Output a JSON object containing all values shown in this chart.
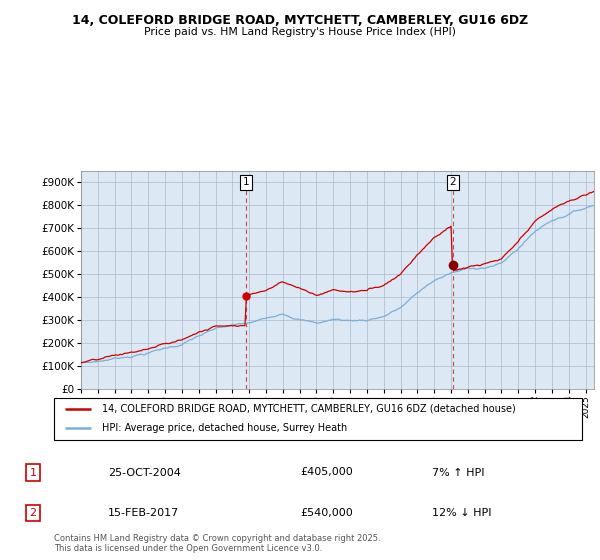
{
  "title1": "14, COLEFORD BRIDGE ROAD, MYTCHETT, CAMBERLEY, GU16 6DZ",
  "title2": "Price paid vs. HM Land Registry's House Price Index (HPI)",
  "ytick_vals": [
    0,
    100000,
    200000,
    300000,
    400000,
    500000,
    600000,
    700000,
    800000,
    900000
  ],
  "ylim": [
    0,
    950000
  ],
  "xlim_start": 1995.0,
  "xlim_end": 2025.5,
  "sale1_x": 2004.82,
  "sale1_y": 405000,
  "sale2_x": 2017.12,
  "sale2_y": 540000,
  "line_color_red": "#cc0000",
  "line_color_blue": "#7dadd4",
  "background_color": "#dce9f5",
  "plot_bg": "#ffffff",
  "legend_line1": "14, COLEFORD BRIDGE ROAD, MYTCHETT, CAMBERLEY, GU16 6DZ (detached house)",
  "legend_line2": "HPI: Average price, detached house, Surrey Heath",
  "annotation1_date": "25-OCT-2004",
  "annotation1_price": "£405,000",
  "annotation1_hpi": "7% ↑ HPI",
  "annotation2_date": "15-FEB-2017",
  "annotation2_price": "£540,000",
  "annotation2_hpi": "12% ↓ HPI",
  "footer": "Contains HM Land Registry data © Crown copyright and database right 2025.\nThis data is licensed under the Open Government Licence v3.0."
}
